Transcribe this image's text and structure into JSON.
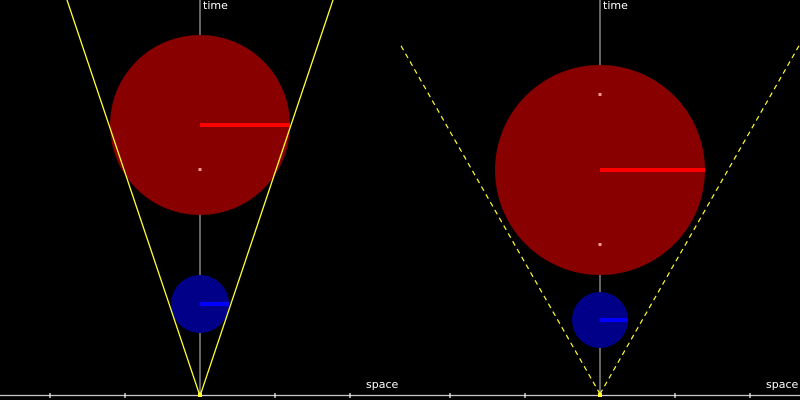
{
  "labels": {
    "left_time": "time",
    "left_space": "space",
    "right_time": "time",
    "right_space": "space"
  },
  "colors": {
    "background": "#000000",
    "axis": "#c8c8c8",
    "tick": "#ffffff",
    "light_cone": "#ffff33",
    "red_sphere": "#880000",
    "red_radius": "#ff0000",
    "blue_sphere": "#000088",
    "blue_radius": "#0000ff",
    "marker": "#ff9999"
  },
  "panels": {
    "left": {
      "cone_style": "solid"
    },
    "right": {
      "cone_style": "dashed"
    }
  }
}
